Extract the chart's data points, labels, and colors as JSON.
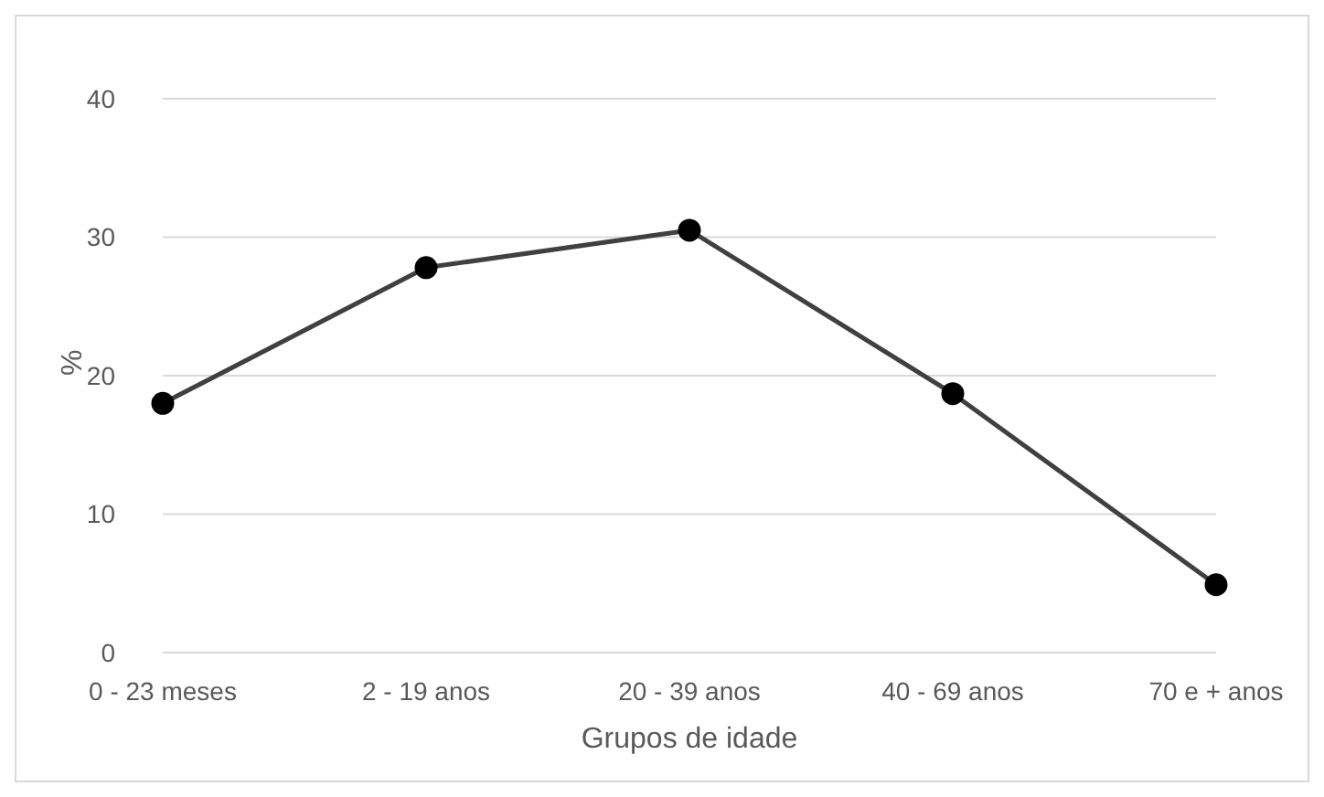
{
  "chart_data": {
    "type": "line",
    "xlabel": "Grupos de idade",
    "ylabel": "%",
    "categories": [
      "0 - 23 meses",
      "2 - 19 anos",
      "20 - 39 anos",
      "40 - 69 anos",
      "70 e + anos"
    ],
    "series": [
      {
        "color": "#404040",
        "values": [
          18,
          27.8,
          30.5,
          18.7,
          4.9
        ]
      }
    ],
    "ylim": [
      0,
      40
    ],
    "yticks": [
      0,
      10,
      20,
      30,
      40
    ],
    "grid": "y",
    "legend": false,
    "marker": "circle",
    "line_style": "solid"
  }
}
